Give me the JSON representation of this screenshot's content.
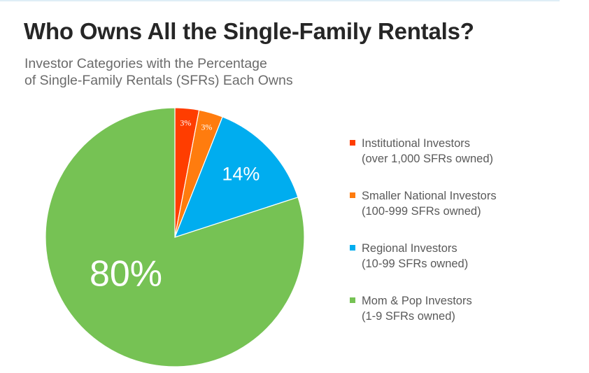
{
  "title": "Who Owns All the Single-Family Rentals?",
  "subtitle_line1": "Investor Categories with the Percentage",
  "subtitle_line2": "of Single-Family Rentals (SFRs) Each Owns",
  "chart_data": {
    "type": "pie",
    "title": "Who Owns All the Single-Family Rentals?",
    "legend_position": "right",
    "slices": [
      {
        "name": "Institutional Investors",
        "detail": "(over 1,000 SFRs owned)",
        "value": 3,
        "label": "3%",
        "color": "#ff3d00"
      },
      {
        "name": "Smaller National Investors",
        "detail": "(100-999 SFRs owned)",
        "value": 3,
        "label": "3%",
        "color": "#ff7c0e"
      },
      {
        "name": "Regional Investors",
        "detail": "(10-99 SFRs owned)",
        "value": 14,
        "label": "14%",
        "color": "#00adef"
      },
      {
        "name": "Mom & Pop Investors",
        "detail": "(1-9 SFRs owned)",
        "value": 80,
        "label": "80%",
        "color": "#76c254"
      }
    ]
  }
}
